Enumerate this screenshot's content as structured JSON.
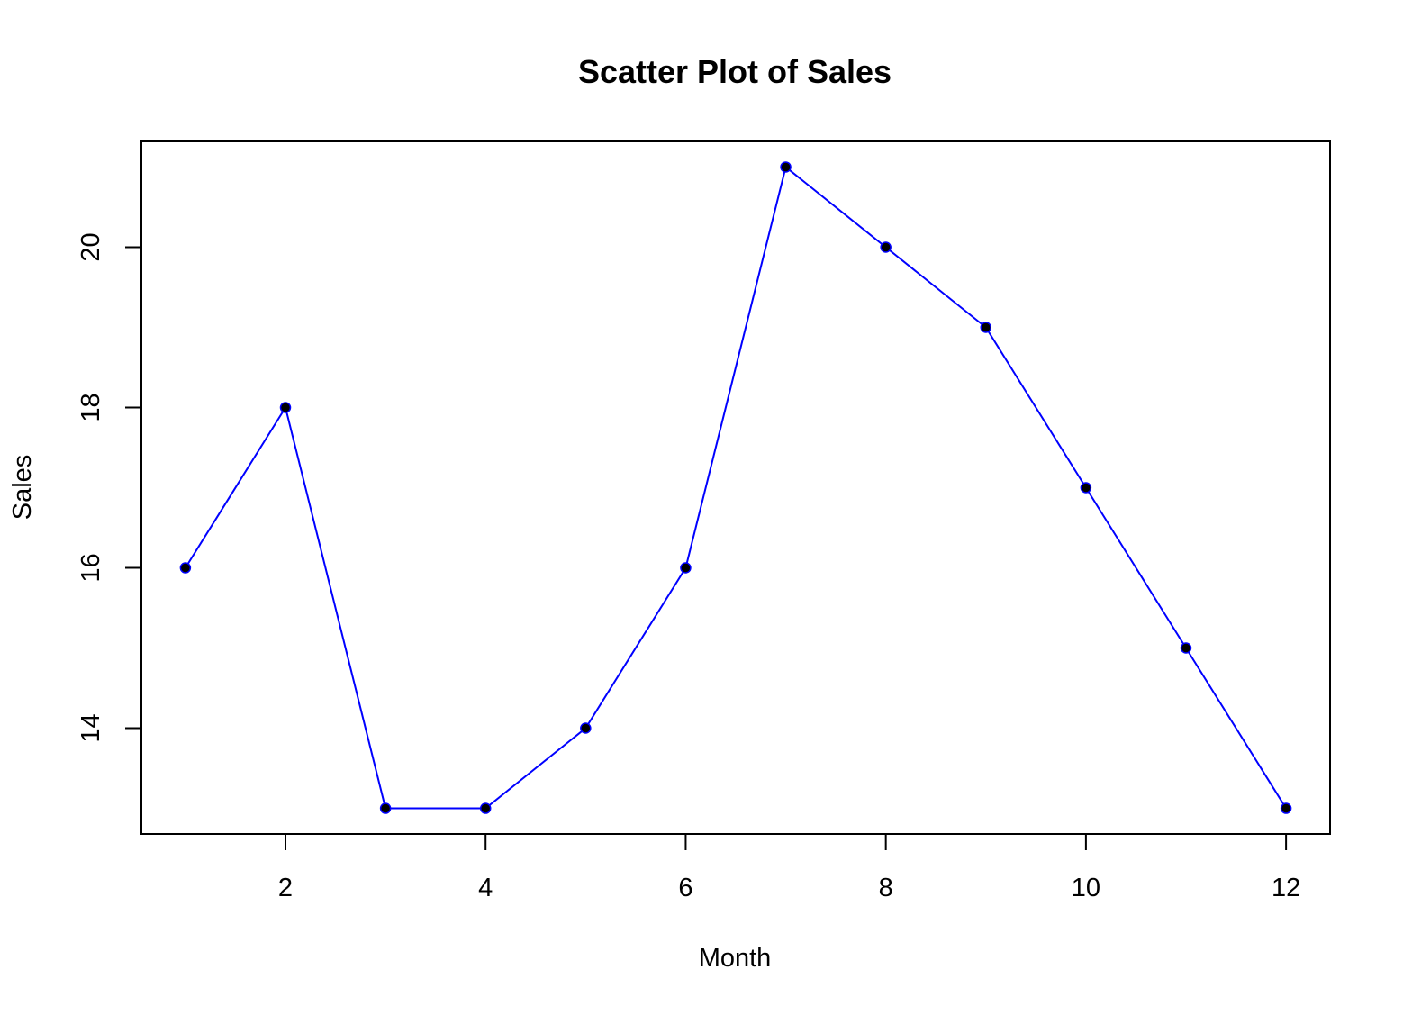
{
  "chart_data": {
    "type": "line",
    "title": "Scatter Plot of Sales",
    "xlabel": "Month",
    "ylabel": "Sales",
    "xlim": [
      0.56,
      12.44
    ],
    "ylim": [
      12.68,
      21.32
    ],
    "xticks": [
      2,
      4,
      6,
      8,
      10,
      12
    ],
    "yticks": [
      14,
      16,
      18,
      20
    ],
    "grid": false,
    "colors": {
      "line": "#0000ff",
      "points": "#000000",
      "axes": "#000000"
    },
    "series": [
      {
        "x": [
          1,
          2,
          3,
          4,
          5,
          6,
          7,
          8,
          9,
          10,
          11,
          12
        ],
        "y": [
          16,
          18,
          13,
          13,
          14,
          16,
          21,
          20,
          19,
          17,
          15,
          13
        ]
      }
    ]
  }
}
